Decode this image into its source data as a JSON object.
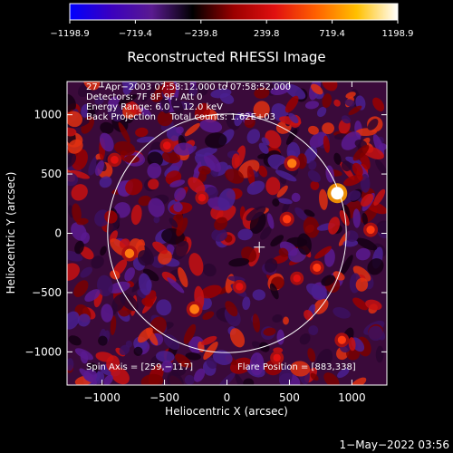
{
  "colorbar": {
    "ticks": [
      "−1198.9",
      "−719.4",
      "−239.8",
      "239.8",
      "719.4",
      "1198.9"
    ],
    "stops": [
      "#0000ff",
      "#3a00c0",
      "#5a1a90",
      "#000000",
      "#9b0000",
      "#e01010",
      "#ff6000",
      "#ffc000",
      "#ffffff"
    ]
  },
  "chart_data": {
    "type": "heatmap",
    "title": "Reconstructed RHESSI Image",
    "xlabel": "Heliocentric X (arcsec)",
    "ylabel": "Heliocentric Y (arcsec)",
    "xlim": [
      -1280,
      1280
    ],
    "ylim": [
      -1280,
      1280
    ],
    "x_ticks": [
      "−1000",
      "−500",
      "0",
      "500",
      "1000"
    ],
    "y_ticks": [
      "−1000",
      "−500",
      "0",
      "500",
      "1000"
    ],
    "x_tick_values": [
      -1000,
      -500,
      0,
      500,
      1000
    ],
    "y_tick_values": [
      -1000,
      -500,
      0,
      500,
      1000
    ],
    "info_lines": [
      "27−Apr−2003 07:58:12.000 to 07:58:52.000",
      "Detectors: 7F 8F 9F, Att 0",
      "Energy Range: 6.0 − 12.0 keV",
      "Back Projection     Total counts: 1.62E+03"
    ],
    "spin_axis": "Spin Axis = [259,−117]",
    "flare_position": "Flare Position = [883,338]",
    "solar_limb_radius": 955,
    "spin_axis_xy": [
      259,
      -117
    ],
    "flare_xy": [
      883,
      338
    ],
    "bright_sources": [
      {
        "x": 883,
        "y": 338,
        "v": 1.0
      },
      {
        "x": 520,
        "y": 590,
        "v": 0.55
      },
      {
        "x": -780,
        "y": -170,
        "v": 0.55
      },
      {
        "x": -260,
        "y": -640,
        "v": 0.58
      },
      {
        "x": 1150,
        "y": 30,
        "v": 0.4
      },
      {
        "x": 720,
        "y": -290,
        "v": 0.38
      },
      {
        "x": 560,
        "y": -380,
        "v": 0.3
      },
      {
        "x": 480,
        "y": 120,
        "v": 0.42
      },
      {
        "x": -900,
        "y": 620,
        "v": 0.35
      },
      {
        "x": 920,
        "y": -900,
        "v": 0.4
      },
      {
        "x": -480,
        "y": 740,
        "v": 0.35
      },
      {
        "x": 100,
        "y": -450,
        "v": 0.3
      },
      {
        "x": 400,
        "y": -1050,
        "v": 0.3
      },
      {
        "x": -200,
        "y": 300,
        "v": 0.3
      }
    ],
    "colorbar_range": [
      -1198.9,
      1198.9
    ]
  },
  "footer": {
    "date": "1−May−2022 03:56"
  }
}
